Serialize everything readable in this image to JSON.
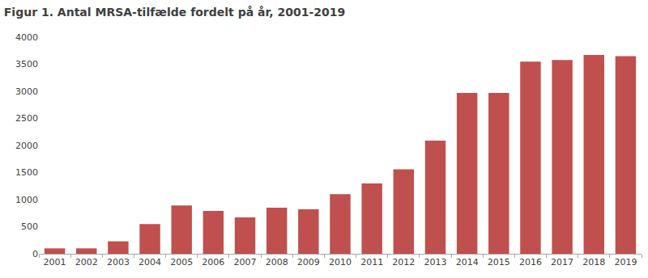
{
  "chart_data": {
    "type": "bar",
    "title": "Figur 1. Antal MRSA-tilfælde fordelt på år, 2001-2019",
    "categories": [
      "2001",
      "2002",
      "2003",
      "2004",
      "2005",
      "2006",
      "2007",
      "2008",
      "2009",
      "2010",
      "2011",
      "2012",
      "2013",
      "2014",
      "2015",
      "2016",
      "2017",
      "2018",
      "2019"
    ],
    "values": [
      100,
      100,
      230,
      550,
      890,
      790,
      670,
      850,
      820,
      1100,
      1300,
      1560,
      2090,
      2970,
      2970,
      3550,
      3580,
      3670,
      3650
    ],
    "color": "#c0504d",
    "ylim": [
      0,
      4000
    ],
    "yticks": [
      0,
      500,
      1000,
      1500,
      2000,
      2500,
      3000,
      3500,
      4000
    ],
    "grid": false
  }
}
